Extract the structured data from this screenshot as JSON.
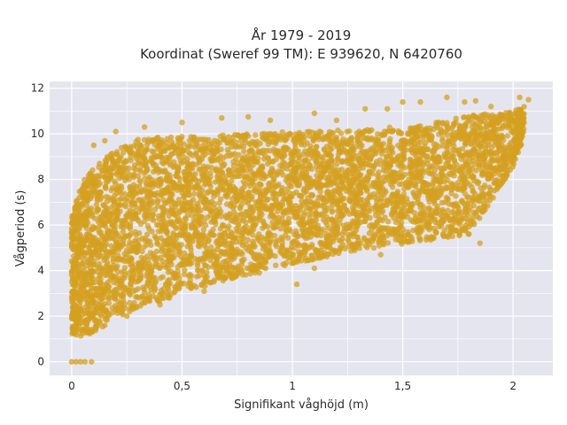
{
  "chart_data": {
    "type": "scatter",
    "title_lines": [
      "År 1979 - 2019",
      "Koordinat (Sweref 99 TM): E 939620, N 6420760"
    ],
    "xlabel": "Signifikant våghöjd (m)",
    "ylabel": "Vågperiod (s)",
    "xlim": [
      -0.1,
      2.18
    ],
    "ylim": [
      -0.6,
      12.3
    ],
    "xticks": [
      {
        "value": 0,
        "label": "0"
      },
      {
        "value": 0.5,
        "label": "0,5"
      },
      {
        "value": 1,
        "label": "1"
      },
      {
        "value": 1.5,
        "label": "1,5"
      },
      {
        "value": 2,
        "label": "2"
      }
    ],
    "yticks": [
      {
        "value": 0,
        "label": "0"
      },
      {
        "value": 2,
        "label": "2"
      },
      {
        "value": 4,
        "label": "4"
      },
      {
        "value": 6,
        "label": "6"
      },
      {
        "value": 8,
        "label": "8"
      },
      {
        "value": 10,
        "label": "10"
      },
      {
        "value": 12,
        "label": "12"
      }
    ],
    "grid": true,
    "marker_color": "#d4a020",
    "background_color": "#e5e5ef",
    "density_envelope": {
      "x": [
        0,
        0.05,
        0.1,
        0.2,
        0.3,
        0.5,
        0.7,
        1.0,
        1.3,
        1.6,
        1.8,
        2.0,
        2.05
      ],
      "y_low": [
        1.2,
        1.1,
        1.3,
        1.9,
        2.3,
        3.0,
        3.6,
        4.3,
        4.9,
        5.3,
        5.6,
        8.5,
        9.8
      ],
      "y_high": [
        6.5,
        7.9,
        8.5,
        9.3,
        9.8,
        9.9,
        10.0,
        10.1,
        10.2,
        10.4,
        10.8,
        11.0,
        11.2
      ]
    },
    "outlier_points": [
      {
        "x": 0,
        "y": 0
      },
      {
        "x": 0.02,
        "y": 0
      },
      {
        "x": 0.04,
        "y": 0
      },
      {
        "x": 0.06,
        "y": 0
      },
      {
        "x": 0.09,
        "y": 0
      },
      {
        "x": 0.1,
        "y": 9.5
      },
      {
        "x": 0.15,
        "y": 9.7
      },
      {
        "x": 0.2,
        "y": 10.1
      },
      {
        "x": 0.33,
        "y": 10.3
      },
      {
        "x": 0.5,
        "y": 10.5
      },
      {
        "x": 0.68,
        "y": 10.7
      },
      {
        "x": 0.8,
        "y": 10.75
      },
      {
        "x": 0.9,
        "y": 10.6
      },
      {
        "x": 1.1,
        "y": 10.9
      },
      {
        "x": 1.2,
        "y": 10.6
      },
      {
        "x": 1.33,
        "y": 11.1
      },
      {
        "x": 1.43,
        "y": 11.1
      },
      {
        "x": 1.5,
        "y": 11.4
      },
      {
        "x": 1.58,
        "y": 11.4
      },
      {
        "x": 1.7,
        "y": 11.6
      },
      {
        "x": 1.78,
        "y": 11.4
      },
      {
        "x": 1.83,
        "y": 11.45
      },
      {
        "x": 1.9,
        "y": 11.2
      },
      {
        "x": 2.03,
        "y": 11.6
      },
      {
        "x": 2.07,
        "y": 11.5
      },
      {
        "x": 2.05,
        "y": 10.5
      },
      {
        "x": 1.88,
        "y": 9.8
      },
      {
        "x": 1.85,
        "y": 5.2
      },
      {
        "x": 1.8,
        "y": 5.6
      },
      {
        "x": 1.7,
        "y": 5.5
      },
      {
        "x": 1.65,
        "y": 6.6
      },
      {
        "x": 1.75,
        "y": 6.5
      },
      {
        "x": 1.88,
        "y": 7.1
      },
      {
        "x": 1.4,
        "y": 4.7
      },
      {
        "x": 1.1,
        "y": 4.1
      },
      {
        "x": 1.02,
        "y": 3.4
      },
      {
        "x": 0.85,
        "y": 3.9
      },
      {
        "x": 0.6,
        "y": 3.1
      },
      {
        "x": 0.4,
        "y": 2.5
      },
      {
        "x": 0.25,
        "y": 2.0
      },
      {
        "x": 0.15,
        "y": 1.6
      },
      {
        "x": 1.3,
        "y": 6.2
      },
      {
        "x": 1.5,
        "y": 6.5
      }
    ]
  }
}
